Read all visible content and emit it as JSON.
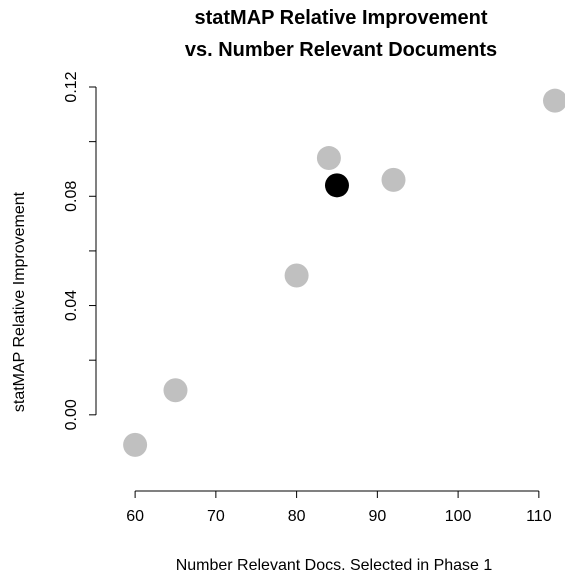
{
  "chart_data": {
    "type": "scatter",
    "title": [
      "statMAP Relative Improvement",
      "vs. Number Relevant Documents"
    ],
    "xlabel": "Number Relevant Docs. Selected in Phase 1",
    "ylabel": "statMAP Relative Improvement",
    "xlim": [
      58.5,
      112
    ],
    "ylim": [
      -0.018,
      0.12
    ],
    "x_ticks": [
      60,
      70,
      80,
      90,
      100,
      110
    ],
    "y_ticks": [
      "0.00",
      "0.04",
      "0.08",
      "0.12"
    ],
    "y_minor_ticks": [
      0.0,
      0.02,
      0.04,
      0.06,
      0.08,
      0.1,
      0.12
    ],
    "grid": false,
    "legend": "none",
    "points": [
      {
        "x": 60,
        "y": -0.011,
        "color": "#c0c0c0"
      },
      {
        "x": 65,
        "y": 0.009,
        "color": "#c0c0c0"
      },
      {
        "x": 80,
        "y": 0.051,
        "color": "#c0c0c0"
      },
      {
        "x": 84,
        "y": 0.094,
        "color": "#c0c0c0"
      },
      {
        "x": 85,
        "y": 0.084,
        "color": "#000000"
      },
      {
        "x": 92,
        "y": 0.086,
        "color": "#c0c0c0"
      },
      {
        "x": 112,
        "y": 0.115,
        "color": "#c0c0c0"
      }
    ]
  }
}
